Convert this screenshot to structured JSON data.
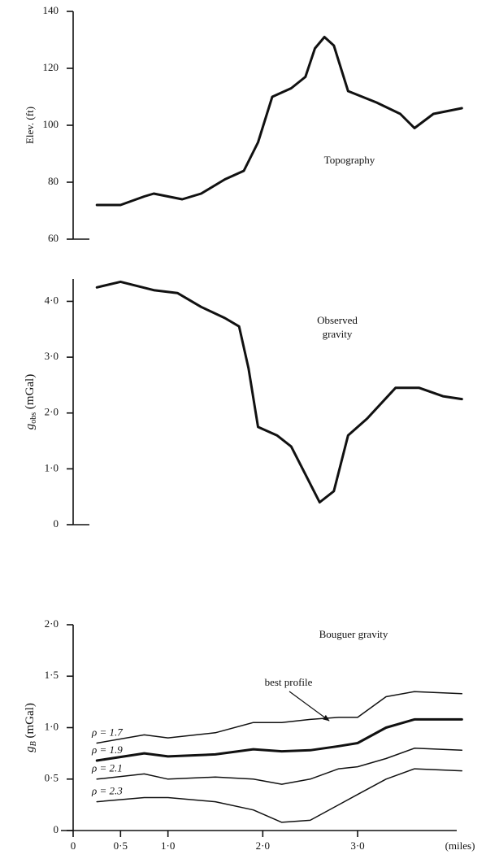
{
  "chart_data": [
    {
      "type": "line",
      "title": "Topography",
      "ylabel": "Elev. (ft)",
      "xlim": [
        0,
        4.2
      ],
      "ylim": [
        60,
        140
      ],
      "yticks": [
        60,
        80,
        100,
        120,
        140
      ],
      "color": "#111",
      "x": [
        0.25,
        0.5,
        0.75,
        0.85,
        1.0,
        1.15,
        1.35,
        1.6,
        1.8,
        1.95,
        2.1,
        2.3,
        2.45,
        2.55,
        2.65,
        2.75,
        2.9,
        3.2,
        3.45,
        3.6,
        3.8,
        4.1
      ],
      "values": [
        72,
        72,
        75,
        76,
        75,
        74,
        76,
        81,
        84,
        94,
        110,
        113,
        117,
        127,
        131,
        128,
        112,
        108,
        104,
        99,
        104,
        106
      ]
    },
    {
      "type": "line",
      "title": [
        "Observed",
        "gravity"
      ],
      "ylabel": {
        "symbol": "g",
        "subscript": "obs",
        "unit": "(mGal)"
      },
      "xlim": [
        0,
        4.2
      ],
      "ylim": [
        0,
        4.4
      ],
      "yticks": [
        0,
        {
          "value": 1,
          "label": "1·0"
        },
        {
          "value": 2,
          "label": "2·0"
        },
        {
          "value": 3,
          "label": "3·0"
        },
        {
          "value": 4,
          "label": "4·0"
        }
      ],
      "color": "#111",
      "x": [
        0.25,
        0.5,
        0.85,
        1.1,
        1.35,
        1.6,
        1.75,
        1.85,
        1.95,
        2.15,
        2.3,
        2.45,
        2.6,
        2.75,
        2.9,
        3.1,
        3.4,
        3.65,
        3.9,
        4.1
      ],
      "values": [
        4.25,
        4.35,
        4.2,
        4.15,
        3.9,
        3.7,
        3.55,
        2.8,
        1.75,
        1.6,
        1.4,
        0.9,
        0.4,
        0.6,
        1.6,
        1.9,
        2.45,
        2.45,
        2.3,
        2.25
      ]
    },
    {
      "type": "line",
      "title": "Bouguer gravity",
      "ylabel": {
        "symbol": "g",
        "subscript": "B",
        "unit": "(mGal)"
      },
      "xlabel": "(miles)",
      "annotation": "best profile",
      "xlim": [
        0,
        4.2
      ],
      "ylim": [
        0,
        2.0
      ],
      "xticks": [
        0,
        {
          "value": 0.5,
          "label": "0·5"
        },
        {
          "value": 1,
          "label": "1·0"
        },
        {
          "value": 2,
          "label": "2·0"
        },
        {
          "value": 3,
          "label": "3·0"
        }
      ],
      "yticks": [
        0,
        {
          "value": 0.5,
          "label": "0·5"
        },
        {
          "value": 1,
          "label": "1·0"
        },
        {
          "value": 1.5,
          "label": "1·5"
        },
        {
          "value": 2,
          "label": "2·0"
        }
      ],
      "x": [
        0.25,
        0.75,
        1.0,
        1.5,
        1.9,
        2.2,
        2.5,
        2.8,
        3.0,
        3.3,
        3.6,
        4.1
      ],
      "series": [
        {
          "name": "ρ = 1.7",
          "color": "#111",
          "values": [
            0.85,
            0.93,
            0.9,
            0.95,
            1.05,
            1.05,
            1.08,
            1.1,
            1.1,
            1.3,
            1.35,
            1.33
          ]
        },
        {
          "name": "ρ = 1.9",
          "color": "#111",
          "values": [
            0.68,
            0.75,
            0.72,
            0.74,
            0.79,
            0.77,
            0.78,
            0.82,
            0.85,
            1.0,
            1.08,
            1.08
          ]
        },
        {
          "name": "ρ = 2.1",
          "color": "#111",
          "values": [
            0.5,
            0.55,
            0.5,
            0.52,
            0.5,
            0.45,
            0.5,
            0.6,
            0.62,
            0.7,
            0.8,
            0.78
          ]
        },
        {
          "name": "ρ = 2.3",
          "color": "#111",
          "values": [
            0.28,
            0.32,
            0.32,
            0.28,
            0.2,
            0.08,
            0.1,
            0.25,
            0.35,
            0.5,
            0.6,
            0.58
          ]
        }
      ]
    }
  ]
}
